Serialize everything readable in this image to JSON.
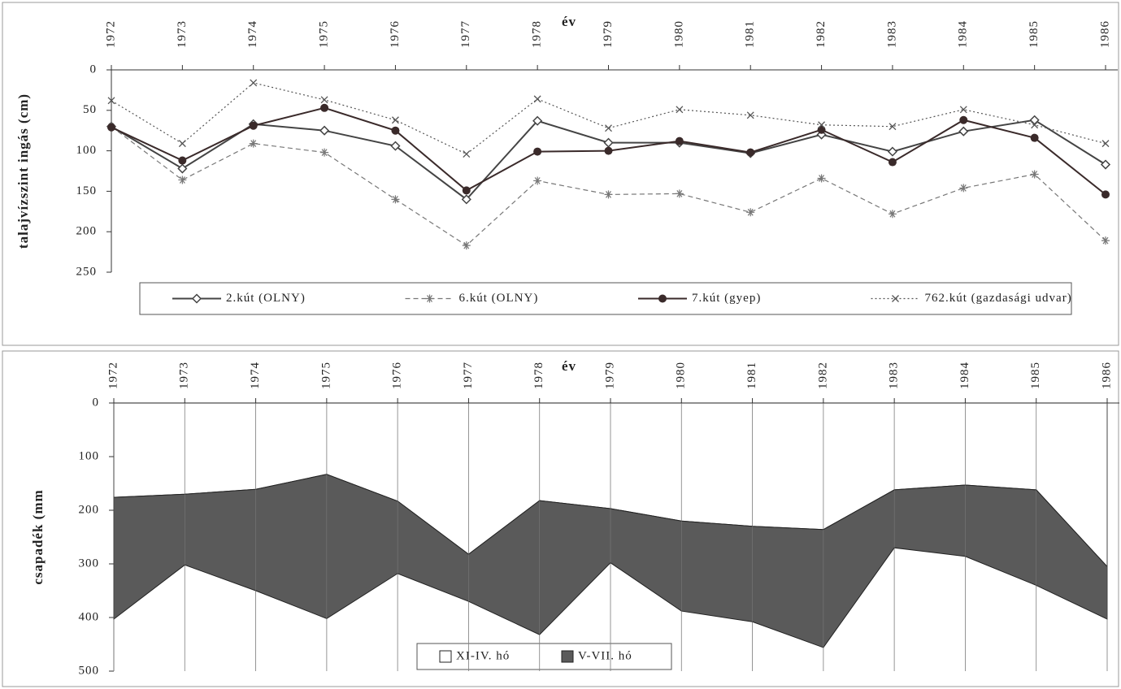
{
  "chart_data": [
    {
      "type": "line",
      "x_label": "év",
      "y_label": "talajvízszint ingás (cm)",
      "categories": [
        "1972",
        "1973",
        "1974",
        "1975",
        "1976",
        "1977",
        "1978",
        "1979",
        "1980",
        "1981",
        "1982",
        "1983",
        "1984",
        "1985",
        "1986"
      ],
      "ylim": [
        0,
        250
      ],
      "yticks": [
        0,
        50,
        100,
        150,
        200,
        250
      ],
      "y_reversed": true,
      "legend": "bottom",
      "series": [
        {
          "name": "2.kút (OLNY)",
          "color": "#444444",
          "marker": "diamond",
          "dash": "solid",
          "values": [
            70,
            122,
            67,
            75,
            94,
            160,
            63,
            90,
            90,
            103,
            80,
            101,
            76,
            62,
            117
          ]
        },
        {
          "name": "6.kút (OLNY)",
          "color": "#777777",
          "marker": "star",
          "dash": "dashed",
          "values": [
            70,
            136,
            91,
            102,
            160,
            217,
            137,
            154,
            153,
            176,
            134,
            178,
            146,
            129,
            211
          ]
        },
        {
          "name": "7.kút (gyep)",
          "color": "#3a2a2a",
          "marker": "circle",
          "dash": "solid",
          "values": [
            71,
            112,
            69,
            47,
            75,
            149,
            101,
            100,
            88,
            102,
            74,
            114,
            62,
            84,
            154
          ]
        },
        {
          "name": "762.kút (gazdasági udvar)",
          "color": "#555555",
          "marker": "x",
          "dash": "dotted",
          "values": [
            38,
            91,
            16,
            37,
            62,
            104,
            36,
            72,
            49,
            56,
            68,
            70,
            49,
            68,
            91
          ]
        }
      ]
    },
    {
      "type": "stacked_area",
      "x_label": "év",
      "y_label": "csapadék (mm",
      "categories": [
        "1972",
        "1973",
        "1974",
        "1975",
        "1976",
        "1977",
        "1978",
        "1979",
        "1980",
        "1981",
        "1982",
        "1983",
        "1984",
        "1985",
        "1986"
      ],
      "ylim": [
        0,
        500
      ],
      "yticks": [
        0,
        100,
        200,
        300,
        400,
        500
      ],
      "y_reversed": true,
      "legend": "bottom",
      "grid_x": true,
      "series": [
        {
          "name": "XI-IV. hó",
          "color": "#ffffff",
          "values": [
            176,
            170,
            161,
            133,
            183,
            282,
            182,
            197,
            220,
            230,
            236,
            162,
            153,
            162,
            305
          ]
        },
        {
          "name": "V-VII. hó",
          "color": "#5a5a5a",
          "values": [
            227,
            132,
            189,
            269,
            135,
            88,
            250,
            101,
            168,
            178,
            220,
            108,
            133,
            178,
            98
          ]
        }
      ]
    }
  ]
}
